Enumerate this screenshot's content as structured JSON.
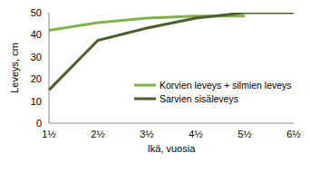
{
  "chart_data": {
    "type": "line",
    "x_label": "Ikä, vuosia",
    "y_label": "Leveys, cm",
    "categories": [
      "1½",
      "2½",
      "3½",
      "4½",
      "5½",
      "6½"
    ],
    "series": [
      {
        "name": "Korvien leveys + silmien leveys",
        "color": "#7fb24a",
        "values": [
          42,
          45.5,
          47.5,
          48.5,
          48.5,
          null
        ]
      },
      {
        "name": "Sarvien sisäleveys",
        "color": "#4a5f2b",
        "values": [
          15,
          37.5,
          43,
          47.5,
          50,
          50
        ]
      }
    ],
    "ylim": [
      0,
      50
    ],
    "yticks": [
      0,
      10,
      20,
      30,
      40,
      50
    ],
    "grid": false,
    "legend": "right"
  }
}
